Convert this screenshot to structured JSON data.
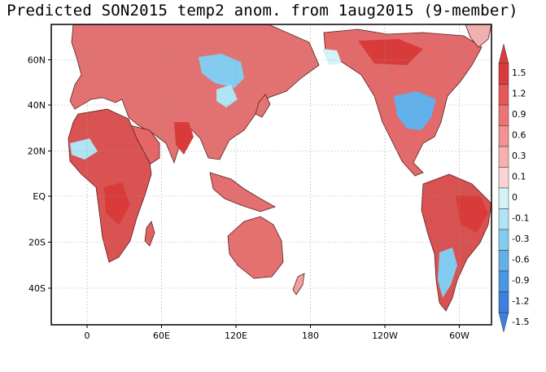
{
  "title": "Predicted SON2015 temp2 anom. from 1aug2015 (9-member)",
  "chart_data": {
    "type": "heatmap",
    "title": "Predicted SON2015 temp2 anom. from 1aug2015 (9-member)",
    "lat_ticks": [
      "60N",
      "40N",
      "20N",
      "EQ",
      "20S",
      "40S"
    ],
    "lat_values": [
      60,
      40,
      20,
      0,
      -20,
      -40
    ],
    "lon_ticks": [
      "0",
      "60E",
      "120E",
      "180",
      "120W",
      "60W"
    ],
    "lon_values": [
      0,
      60,
      120,
      180,
      240,
      300
    ],
    "lon_range": [
      -30,
      330
    ],
    "lat_range": [
      -60,
      75
    ],
    "grid": true,
    "colorbar": {
      "labels": [
        "1.5",
        "1.2",
        "0.9",
        "0.6",
        "0.3",
        "0.1",
        "0",
        "-0.1",
        "-0.3",
        "-0.6",
        "-0.9",
        "-1.2",
        "-1.5"
      ],
      "colors": [
        "#d93b3b",
        "#e45858",
        "#ec7474",
        "#f29292",
        "#f7b0b0",
        "#fbd3d3",
        "#ffffff",
        "#d4f3f8",
        "#aee4f3",
        "#84ccef",
        "#62b0ea",
        "#4a96e2",
        "#3a80dc"
      ]
    }
  }
}
